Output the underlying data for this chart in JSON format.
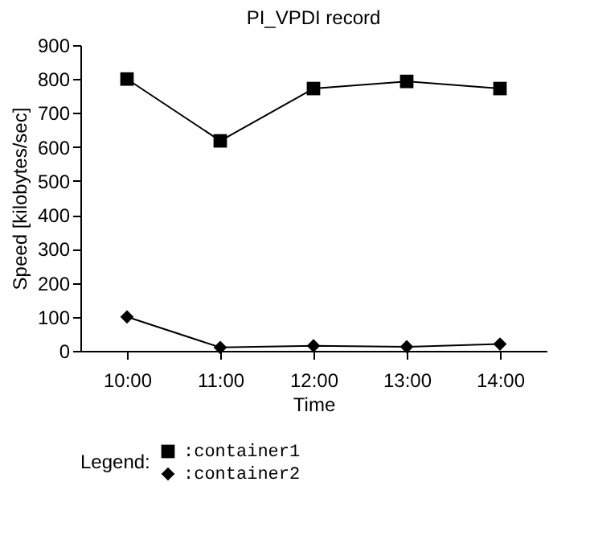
{
  "chart_data": {
    "type": "line",
    "title": "PI_VPDI record",
    "xlabel": "Time",
    "ylabel": "Speed [kilobytes/sec]",
    "legend_title": "Legend:",
    "legend": "bottom left",
    "grid": false,
    "categories": [
      "10:00",
      "11:00",
      "12:00",
      "13:00",
      "14:00"
    ],
    "ylim": [
      0,
      900
    ],
    "yticks": [
      0,
      100,
      200,
      300,
      400,
      500,
      600,
      700,
      800,
      900
    ],
    "series": [
      {
        "name": ":container1",
        "color": "#000000",
        "marker": "square",
        "values": [
          800,
          618,
          772,
          793,
          772
        ]
      },
      {
        "name": ":container2",
        "color": "#000000",
        "marker": "diamond",
        "values": [
          100,
          10,
          15,
          12,
          20
        ]
      }
    ]
  }
}
